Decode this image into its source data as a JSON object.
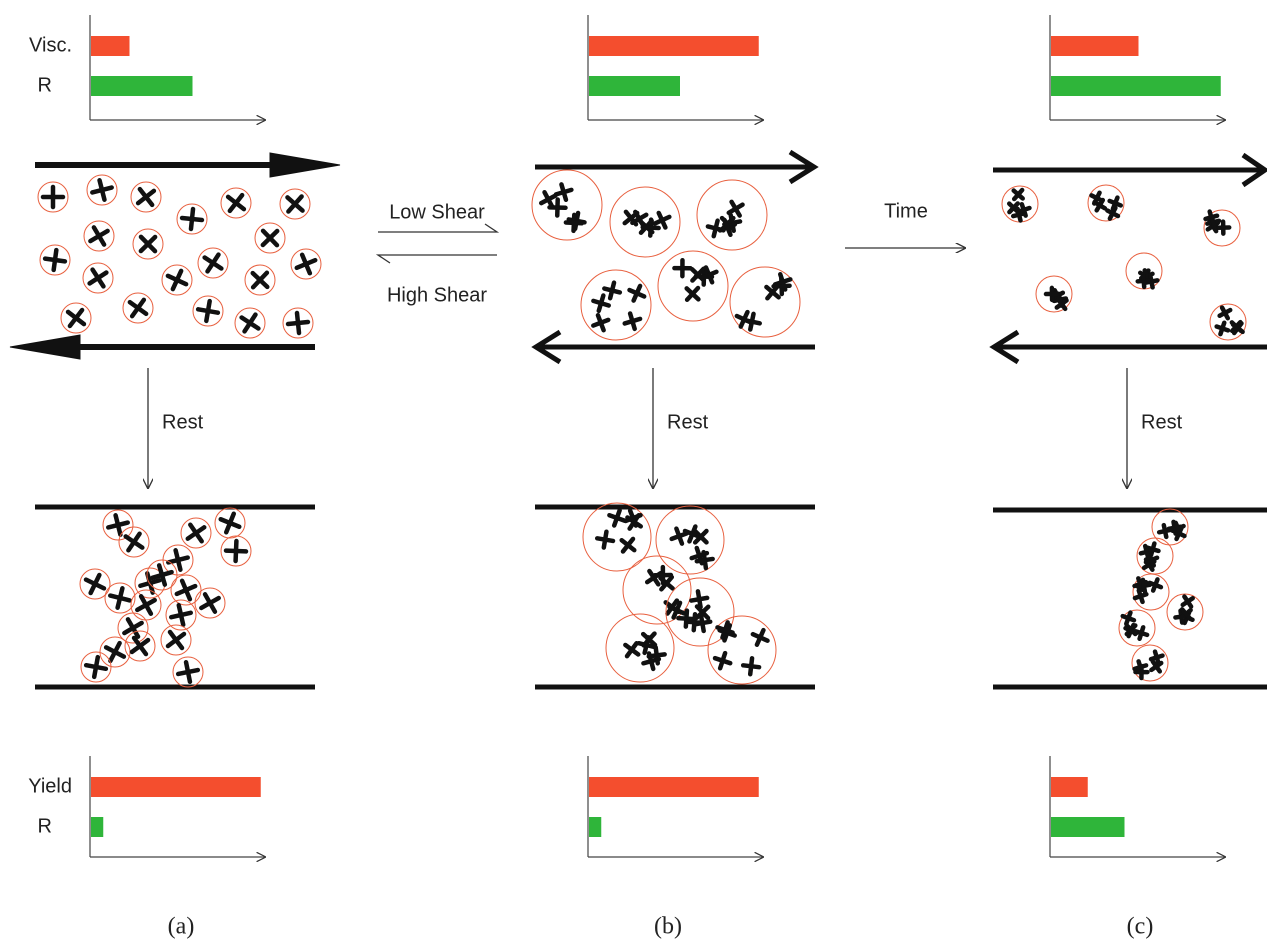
{
  "bar_labels": {
    "top": [
      "Visc.",
      "R"
    ],
    "bottom": [
      "Yield",
      "R"
    ]
  },
  "bar_colors": [
    "#f44e2e",
    "#2fb53a"
  ],
  "xlim": [
    0,
    100
  ],
  "panels": [
    {
      "caption": "(a)",
      "rest_label": "Rest",
      "top_bars": [
        22,
        58
      ],
      "bottom_bars": [
        97,
        7
      ]
    },
    {
      "caption": "(b)",
      "rest_label": "Rest",
      "top_bars": [
        97,
        52
      ],
      "bottom_bars": [
        97,
        7
      ]
    },
    {
      "caption": "(c)",
      "rest_label": "Rest",
      "top_bars": [
        50,
        97
      ],
      "bottom_bars": [
        21,
        42
      ]
    }
  ],
  "transitions": [
    {
      "forward": "Low Shear",
      "backward": "High Shear"
    },
    {
      "forward": "Time"
    }
  ]
}
